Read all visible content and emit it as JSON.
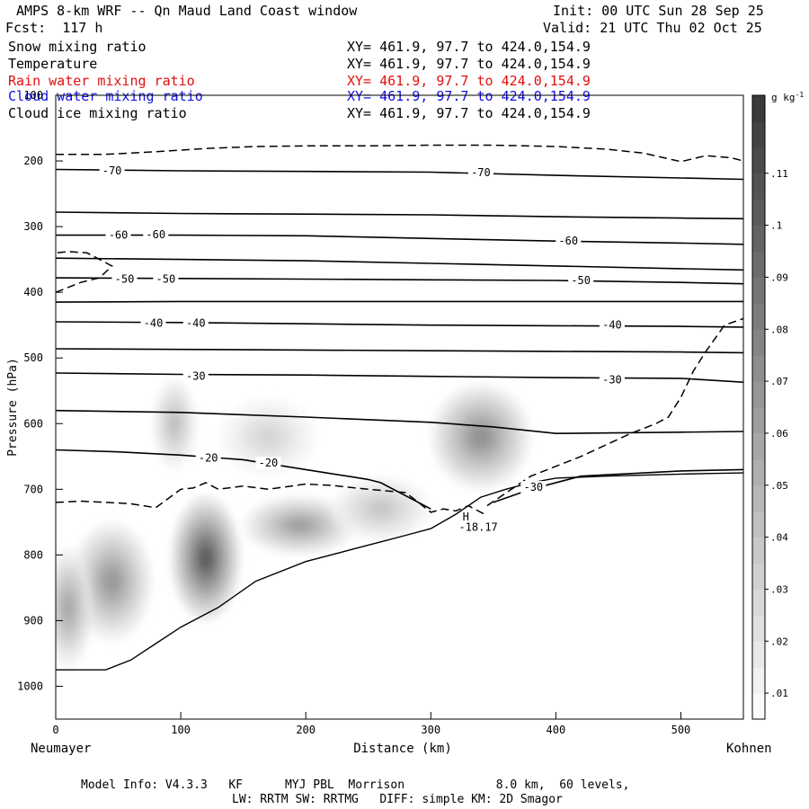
{
  "header": {
    "title": "AMPS 8-km WRF -- Qn Maud Land Coast window",
    "init": "Init: 00 UTC Sun 28 Sep 25",
    "fcst": "Fcst:  117 h",
    "valid": "Valid: 21 UTC Thu 02 Oct 25"
  },
  "fields": [
    {
      "name": "Snow mixing ratio",
      "xy": "XY= 461.9, 97.7 to 424.0,154.9",
      "color": "#000000"
    },
    {
      "name": "Temperature",
      "xy": "XY= 461.9, 97.7 to 424.0,154.9",
      "color": "#000000"
    },
    {
      "name": "Rain water mixing ratio",
      "xy": "XY= 461.9, 97.7 to 424.0,154.9",
      "color": "#e01010"
    },
    {
      "name": "Cloud water mixing ratio",
      "xy": "XY= 461.9, 97.7 to 424.0,154.9",
      "color": "#1010e0"
    },
    {
      "name": "Cloud ice mixing ratio",
      "xy": "XY= 461.9, 97.7 to 424.0,154.9",
      "color": "#000000"
    }
  ],
  "chart_data": {
    "type": "heatmap",
    "title": "AMPS 8-km WRF -- Qn Maud Land Coast window",
    "xlabel": "Distance (km)",
    "ylabel": "Pressure (hPa)",
    "xlim": [
      0,
      550
    ],
    "ylim": [
      1050,
      100
    ],
    "x_ticks": [
      0,
      100,
      200,
      300,
      400,
      500
    ],
    "y_ticks": [
      100,
      200,
      300,
      400,
      500,
      600,
      700,
      800,
      900,
      1000
    ],
    "left_endpoint": "Neumayer",
    "right_endpoint": "Kohnen",
    "colorbar": {
      "unit": "g kg",
      "unit_sup": "-1",
      "levels": [
        0.005,
        0.01,
        0.015,
        0.02,
        0.025,
        0.03,
        0.035,
        0.04,
        0.045,
        0.05,
        0.055,
        0.06,
        0.065,
        0.07,
        0.075,
        0.08,
        0.085,
        0.09,
        0.095,
        0.1,
        0.105,
        0.11,
        0.115,
        0.12
      ],
      "tick_labels": [
        ".01",
        ".02",
        ".03",
        ".04",
        ".05",
        ".06",
        ".07",
        ".08",
        ".09",
        ".1",
        ".11"
      ],
      "tick_values": [
        0.01,
        0.02,
        0.03,
        0.04,
        0.05,
        0.06,
        0.07,
        0.08,
        0.09,
        0.1,
        0.11
      ],
      "min": 0.005,
      "max": 0.125
    },
    "snow_blobs": [
      {
        "x": 120,
        "p": 805,
        "rx": 28,
        "rp": 95,
        "peak": 0.11
      },
      {
        "x": 95,
        "p": 600,
        "rx": 18,
        "rp": 70,
        "peak": 0.045
      },
      {
        "x": 45,
        "p": 840,
        "rx": 32,
        "rp": 90,
        "peak": 0.07
      },
      {
        "x": 10,
        "p": 880,
        "rx": 20,
        "rp": 90,
        "peak": 0.06
      },
      {
        "x": 195,
        "p": 755,
        "rx": 45,
        "rp": 45,
        "peak": 0.065
      },
      {
        "x": 260,
        "p": 730,
        "rx": 40,
        "rp": 50,
        "peak": 0.04
      },
      {
        "x": 340,
        "p": 620,
        "rx": 40,
        "rp": 80,
        "peak": 0.075
      },
      {
        "x": 170,
        "p": 620,
        "rx": 40,
        "rp": 60,
        "peak": 0.03
      }
    ],
    "temperature_isotherms": [
      {
        "label": "-70",
        "label_positions": [
          {
            "x": 45,
            "p": 215
          },
          {
            "x": 340,
            "p": 218
          }
        ],
        "x": [
          0,
          100,
          200,
          300,
          400,
          500,
          550
        ],
        "p": [
          213,
          215,
          216,
          217,
          222,
          226,
          228
        ]
      },
      {
        "label": "",
        "label_positions": [],
        "x": [
          0,
          100,
          200,
          300,
          400,
          500,
          550
        ],
        "p": [
          278,
          280,
          281,
          282,
          285,
          287,
          288
        ]
      },
      {
        "label": "-60",
        "label_positions": [
          {
            "x": 50,
            "p": 313
          },
          {
            "x": 80,
            "p": 312
          },
          {
            "x": 410,
            "p": 322
          }
        ],
        "x": [
          0,
          100,
          200,
          300,
          400,
          500,
          550
        ],
        "p": [
          313,
          313,
          314,
          318,
          322,
          325,
          327
        ]
      },
      {
        "label": "",
        "label_positions": [],
        "x": [
          0,
          100,
          200,
          300,
          400,
          500,
          550
        ],
        "p": [
          348,
          350,
          352,
          356,
          360,
          364,
          366
        ]
      },
      {
        "label": "-50",
        "label_positions": [
          {
            "x": 55,
            "p": 380
          },
          {
            "x": 88,
            "p": 380
          },
          {
            "x": 420,
            "p": 382
          }
        ],
        "x": [
          0,
          100,
          200,
          300,
          400,
          500,
          550
        ],
        "p": [
          378,
          379,
          380,
          381,
          382,
          385,
          387
        ]
      },
      {
        "label": "",
        "label_positions": [],
        "x": [
          0,
          100,
          200,
          300,
          400,
          500,
          550
        ],
        "p": [
          415,
          414,
          414,
          414,
          414,
          414,
          414
        ]
      },
      {
        "label": "-40",
        "label_positions": [
          {
            "x": 78,
            "p": 447
          },
          {
            "x": 112,
            "p": 447
          },
          {
            "x": 445,
            "p": 450
          }
        ],
        "x": [
          0,
          100,
          200,
          300,
          400,
          500,
          550
        ],
        "p": [
          445,
          446,
          448,
          450,
          451,
          452,
          453
        ]
      },
      {
        "label": "",
        "label_positions": [],
        "x": [
          0,
          100,
          200,
          300,
          400,
          500,
          550
        ],
        "p": [
          486,
          487,
          488,
          489,
          490,
          491,
          492
        ]
      },
      {
        "label": "-30",
        "label_positions": [
          {
            "x": 112,
            "p": 528
          },
          {
            "x": 445,
            "p": 533
          }
        ],
        "x": [
          0,
          100,
          200,
          300,
          400,
          500,
          550
        ],
        "p": [
          523,
          525,
          526,
          528,
          530,
          531,
          537
        ]
      },
      {
        "label": "",
        "label_positions": [],
        "x": [
          0,
          100,
          200,
          300,
          350,
          400,
          500,
          550
        ],
        "p": [
          580,
          583,
          590,
          598,
          605,
          615,
          613,
          612
        ]
      },
      {
        "label": "-20",
        "label_positions": [
          {
            "x": 122,
            "p": 652
          },
          {
            "x": 170,
            "p": 660
          }
        ],
        "x": [
          0,
          50,
          100,
          150,
          200,
          250,
          260,
          300
        ],
        "p": [
          640,
          643,
          648,
          655,
          670,
          685,
          690,
          730
        ]
      },
      {
        "label": "-30",
        "label_positions": [
          {
            "x": 382,
            "p": 697
          }
        ],
        "x": [
          350,
          380,
          420,
          500,
          550
        ],
        "p": [
          720,
          700,
          680,
          672,
          670
        ]
      }
    ],
    "dashed_contours": [
      {
        "x": [
          0,
          20,
          40,
          60,
          80,
          100,
          110,
          120,
          130,
          150,
          170,
          200,
          220,
          250,
          280,
          300,
          310,
          320,
          330,
          345
        ],
        "p": [
          720,
          718,
          720,
          722,
          728,
          700,
          698,
          690,
          700,
          695,
          700,
          692,
          694,
          700,
          705,
          735,
          730,
          733,
          725,
          740
        ]
      },
      {
        "x": [
          0,
          40,
          80,
          120,
          160,
          200,
          250,
          300,
          350,
          400,
          440,
          470,
          500,
          520,
          540,
          550
        ],
        "p": [
          190,
          190,
          186,
          181,
          178,
          177,
          177,
          176,
          176,
          178,
          182,
          188,
          201,
          192,
          195,
          200
        ]
      },
      {
        "x": [
          0,
          20,
          35,
          45,
          25,
          10,
          0
        ],
        "p": [
          400,
          385,
          378,
          360,
          340,
          338,
          340
        ]
      },
      {
        "x": [
          345,
          380,
          420,
          460,
          480,
          490,
          500,
          510,
          520,
          535,
          550
        ],
        "p": [
          725,
          680,
          650,
          615,
          600,
          590,
          560,
          520,
          490,
          450,
          440
        ]
      }
    ],
    "terrain_outline": {
      "x": [
        0,
        20,
        40,
        60,
        80,
        100,
        130,
        160,
        200,
        240,
        260,
        280,
        300,
        320,
        340,
        360,
        380,
        400,
        440,
        480,
        520,
        550
      ],
      "p": [
        975,
        975,
        975,
        960,
        935,
        910,
        880,
        840,
        810,
        790,
        780,
        770,
        760,
        738,
        712,
        700,
        690,
        683,
        680,
        678,
        676,
        675
      ]
    },
    "annotations": [
      {
        "text": "H",
        "x": 328,
        "p": 742
      },
      {
        "text": "-18.17",
        "x": 338,
        "p": 758
      }
    ]
  },
  "footer": {
    "model_info": "Model Info: V4.3.3   KF      MYJ PBL  Morrison             8.0 km,  60 levels,",
    "physics": "LW: RRTM SW: RRTMG   DIFF: simple KM: 2D Smagor"
  }
}
